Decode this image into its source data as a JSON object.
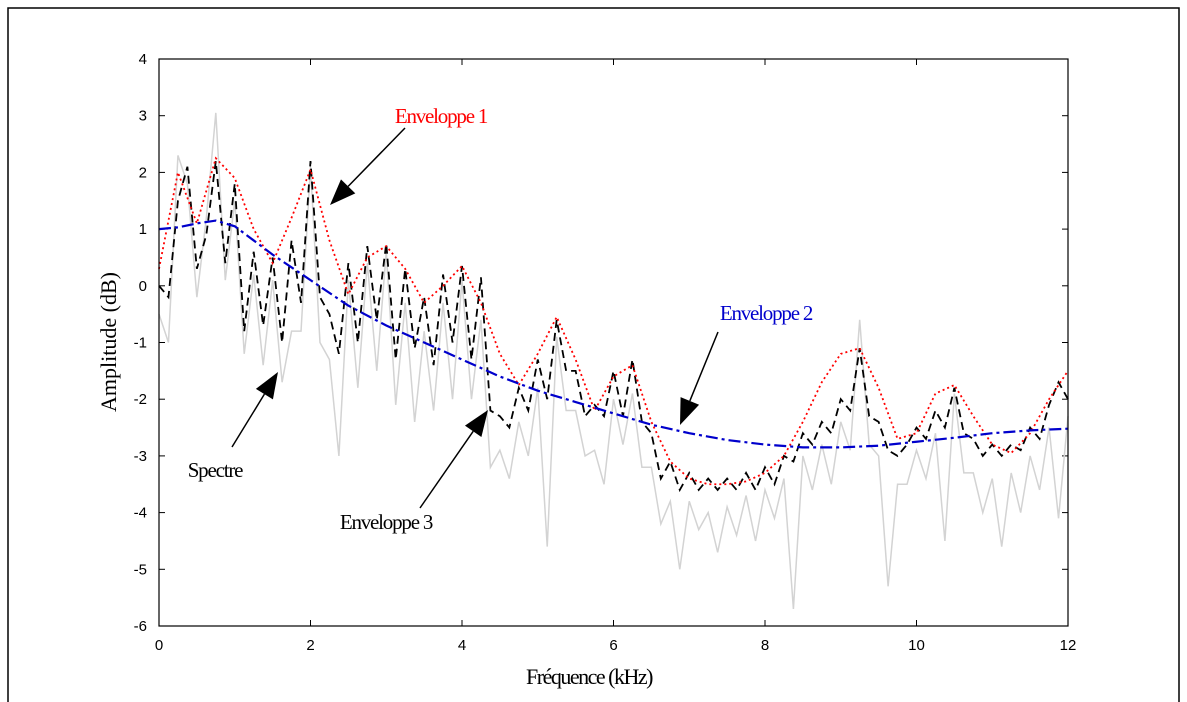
{
  "chart_data": {
    "type": "line",
    "xlabel": "Fréquence (kHz)",
    "ylabel": "Amplitude (dB)",
    "xlim": [
      0,
      12
    ],
    "xticks": [
      0,
      2,
      4,
      6,
      8,
      10,
      12
    ],
    "ylim": [
      -6,
      4
    ],
    "yticks": [
      -6,
      -5,
      -4,
      -3,
      -2,
      -1,
      0,
      1,
      2,
      3,
      4
    ],
    "series": [
      {
        "name": "Spectre",
        "color": "#d3d3d3",
        "x": [
          0,
          0.125,
          0.25,
          0.375,
          0.5,
          0.625,
          0.75,
          0.875,
          1,
          1.125,
          1.25,
          1.375,
          1.5,
          1.625,
          1.75,
          1.875,
          2,
          2.125,
          2.25,
          2.375,
          2.5,
          2.625,
          2.75,
          2.875,
          3,
          3.125,
          3.25,
          3.375,
          3.5,
          3.625,
          3.75,
          3.875,
          4,
          4.125,
          4.25,
          4.375,
          4.5,
          4.625,
          4.75,
          4.875,
          5,
          5.125,
          5.25,
          5.375,
          5.5,
          5.625,
          5.75,
          5.875,
          6,
          6.125,
          6.25,
          6.375,
          6.5,
          6.625,
          6.75,
          6.875,
          7,
          7.125,
          7.25,
          7.375,
          7.5,
          7.625,
          7.75,
          7.875,
          8,
          8.125,
          8.25,
          8.375,
          8.5,
          8.625,
          8.75,
          8.875,
          9,
          9.125,
          9.25,
          9.375,
          9.5,
          9.625,
          9.75,
          9.875,
          10,
          10.125,
          10.25,
          10.375,
          10.5,
          10.625,
          10.75,
          10.875,
          11,
          11.125,
          11.25,
          11.375,
          11.5,
          11.625,
          11.75,
          11.875,
          12
        ],
        "values": [
          -0.5,
          -1.0,
          2.3,
          1.8,
          -0.2,
          1.2,
          3.05,
          0.1,
          1.5,
          -1.2,
          0.2,
          -1.4,
          0.1,
          -1.7,
          -0.8,
          -0.8,
          2.1,
          -1.0,
          -1.3,
          -3.0,
          0.1,
          -1.8,
          0.4,
          -1.5,
          0.6,
          -2.1,
          -0.3,
          -2.4,
          -0.8,
          -2.2,
          -0.3,
          -2.0,
          0.1,
          -2.0,
          -0.6,
          -3.2,
          -2.9,
          -3.4,
          -2.4,
          -3.0,
          -1.8,
          -4.6,
          -0.9,
          -2.2,
          -2.2,
          -3.0,
          -2.9,
          -3.5,
          -2.0,
          -2.8,
          -1.9,
          -3.2,
          -3.2,
          -4.2,
          -3.8,
          -5.0,
          -3.8,
          -4.3,
          -4.0,
          -4.7,
          -3.9,
          -4.4,
          -3.7,
          -4.5,
          -3.6,
          -4.1,
          -3.4,
          -5.7,
          -3.0,
          -3.6,
          -2.8,
          -3.5,
          -2.4,
          -2.9,
          -0.6,
          -2.8,
          -3.0,
          -5.3,
          -3.5,
          -3.5,
          -2.9,
          -3.4,
          -2.6,
          -4.5,
          -1.9,
          -3.3,
          -3.3,
          -4.0,
          -3.4,
          -4.6,
          -3.3,
          -4.0,
          -3.0,
          -3.6,
          -2.5,
          -4.1,
          -2.3
        ]
      },
      {
        "name": "Enveloppe 3",
        "color": "#000000",
        "x": [
          0,
          0.125,
          0.25,
          0.375,
          0.5,
          0.625,
          0.75,
          0.875,
          1,
          1.125,
          1.25,
          1.375,
          1.5,
          1.625,
          1.75,
          1.875,
          2,
          2.125,
          2.25,
          2.375,
          2.5,
          2.625,
          2.75,
          2.875,
          3,
          3.125,
          3.25,
          3.375,
          3.5,
          3.625,
          3.75,
          3.875,
          4,
          4.125,
          4.25,
          4.375,
          4.5,
          4.625,
          4.75,
          4.875,
          5,
          5.125,
          5.25,
          5.375,
          5.5,
          5.625,
          5.75,
          5.875,
          6,
          6.125,
          6.25,
          6.375,
          6.5,
          6.625,
          6.75,
          6.875,
          7,
          7.125,
          7.25,
          7.375,
          7.5,
          7.625,
          7.75,
          7.875,
          8,
          8.125,
          8.25,
          8.375,
          8.5,
          8.625,
          8.75,
          8.875,
          9,
          9.125,
          9.25,
          9.375,
          9.5,
          9.625,
          9.75,
          9.875,
          10,
          10.125,
          10.25,
          10.375,
          10.5,
          10.625,
          10.75,
          10.875,
          11,
          11.125,
          11.25,
          11.375,
          11.5,
          11.625,
          11.75,
          11.875,
          12
        ],
        "values": [
          0.0,
          -0.2,
          1.5,
          2.1,
          0.3,
          0.9,
          2.2,
          0.4,
          1.8,
          -0.8,
          0.6,
          -0.7,
          0.5,
          -1.0,
          0.8,
          -0.3,
          2.2,
          -0.2,
          -0.5,
          -1.2,
          0.4,
          -1.0,
          0.7,
          -0.6,
          0.75,
          -1.3,
          0.3,
          -1.1,
          -0.2,
          -1.4,
          0.2,
          -1.0,
          0.35,
          -1.3,
          0.15,
          -2.2,
          -2.3,
          -2.5,
          -1.8,
          -2.2,
          -1.3,
          -2.0,
          -0.6,
          -1.5,
          -1.5,
          -2.3,
          -2.1,
          -2.3,
          -1.5,
          -2.3,
          -1.3,
          -2.4,
          -2.6,
          -3.4,
          -3.1,
          -3.6,
          -3.3,
          -3.6,
          -3.4,
          -3.6,
          -3.4,
          -3.6,
          -3.3,
          -3.6,
          -3.2,
          -3.5,
          -3.0,
          -3.1,
          -2.6,
          -2.8,
          -2.4,
          -2.6,
          -2.0,
          -2.2,
          -1.1,
          -2.3,
          -2.4,
          -2.9,
          -3.0,
          -2.8,
          -2.5,
          -2.7,
          -2.2,
          -2.5,
          -1.8,
          -2.6,
          -2.7,
          -3.0,
          -2.8,
          -3.0,
          -2.8,
          -2.9,
          -2.5,
          -2.7,
          -2.1,
          -1.7,
          -2.0
        ]
      },
      {
        "name": "Enveloppe 1",
        "color": "#ff0000",
        "x": [
          0,
          0.25,
          0.5,
          0.75,
          1,
          1.25,
          1.5,
          1.75,
          2,
          2.25,
          2.5,
          2.75,
          3,
          3.25,
          3.5,
          3.75,
          4,
          4.25,
          4.5,
          4.75,
          5,
          5.25,
          5.5,
          5.75,
          6,
          6.25,
          6.5,
          6.75,
          7,
          7.25,
          7.5,
          7.75,
          8,
          8.25,
          8.5,
          8.75,
          9,
          9.25,
          9.5,
          9.75,
          10,
          10.25,
          10.5,
          10.75,
          11,
          11.25,
          11.5,
          11.75,
          12
        ],
        "values": [
          0.3,
          2.0,
          1.1,
          2.25,
          1.9,
          1.0,
          0.4,
          1.2,
          2.05,
          0.8,
          -0.15,
          0.5,
          0.7,
          0.3,
          -0.3,
          0.0,
          0.35,
          -0.3,
          -1.2,
          -1.75,
          -1.2,
          -0.55,
          -1.3,
          -2.2,
          -1.6,
          -1.4,
          -2.4,
          -3.1,
          -3.4,
          -3.5,
          -3.5,
          -3.45,
          -3.3,
          -3.0,
          -2.4,
          -1.7,
          -1.2,
          -1.1,
          -1.8,
          -2.7,
          -2.6,
          -1.9,
          -1.75,
          -2.3,
          -2.8,
          -2.95,
          -2.6,
          -2.0,
          -1.5
        ]
      },
      {
        "name": "Enveloppe 2",
        "color": "#0000cc",
        "x": [
          0,
          0.25,
          0.5,
          0.75,
          1,
          1.25,
          1.5,
          2,
          2.5,
          3,
          3.5,
          4,
          4.5,
          5,
          5.5,
          6,
          6.5,
          7,
          7.5,
          8,
          8.5,
          9,
          9.5,
          10,
          10.5,
          11,
          11.5,
          12
        ],
        "values": [
          1.0,
          1.03,
          1.1,
          1.15,
          1.05,
          0.8,
          0.55,
          0.1,
          -0.35,
          -0.7,
          -1.0,
          -1.3,
          -1.6,
          -1.85,
          -2.05,
          -2.25,
          -2.45,
          -2.6,
          -2.72,
          -2.8,
          -2.85,
          -2.85,
          -2.82,
          -2.75,
          -2.68,
          -2.6,
          -2.55,
          -2.52
        ]
      }
    ]
  }
}
